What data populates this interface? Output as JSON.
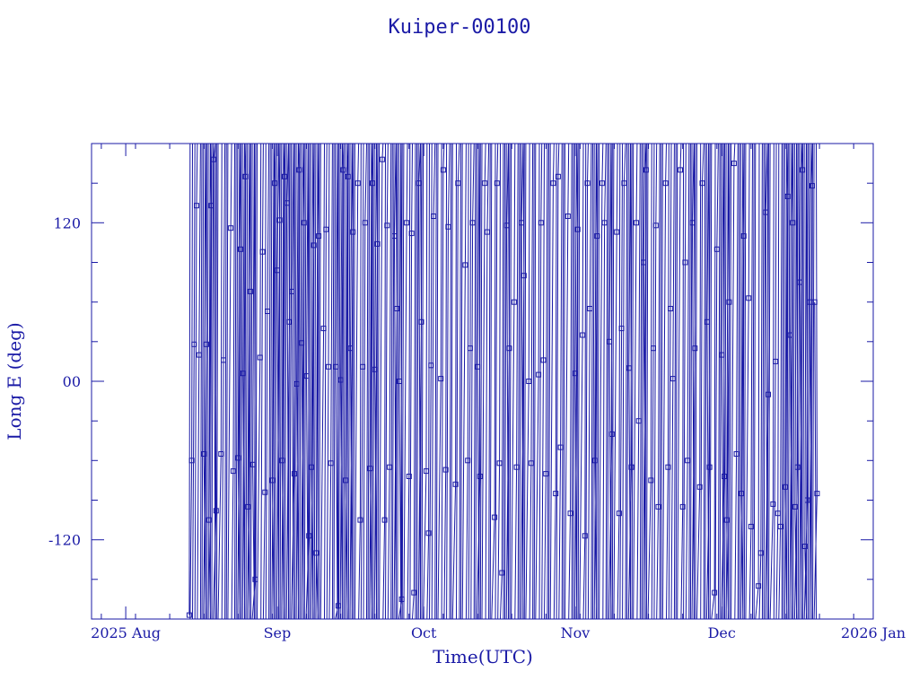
{
  "chart_data": {
    "type": "line",
    "title": "Kuiper-00100",
    "xlabel": "Time(UTC)",
    "ylabel": "Long E (deg)",
    "x_axis_kind": "date",
    "xlim": [
      "2025-07-25",
      "2026-01-01"
    ],
    "ylim": [
      -180,
      180
    ],
    "x_ticks": [
      {
        "date": "2025-08-01",
        "label": "2025 Aug"
      },
      {
        "date": "2025-09-01",
        "label": "Sep"
      },
      {
        "date": "2025-10-01",
        "label": "Oct"
      },
      {
        "date": "2025-11-01",
        "label": "Nov"
      },
      {
        "date": "2025-12-01",
        "label": "Dec"
      },
      {
        "date": "2026-01-01",
        "label": "2026 Jan"
      }
    ],
    "y_ticks": [
      {
        "value": 120,
        "label": "120"
      },
      {
        "value": 0,
        "label": "00"
      },
      {
        "value": -120,
        "label": "-120"
      }
    ],
    "grid": false,
    "legend": "none",
    "marker": "open-square",
    "color": "#1a1aa6",
    "series": [
      {
        "points": [
          {
            "x": "2025-08-14",
            "y": -177
          },
          {
            "x": "2025-08-14",
            "y": -60
          },
          {
            "x": "2025-08-15",
            "y": 28
          },
          {
            "x": "2025-08-15",
            "y": 133
          },
          {
            "x": "2025-08-16",
            "y": 20
          },
          {
            "x": "2025-08-17",
            "y": 28
          },
          {
            "x": "2025-08-17",
            "y": -55
          },
          {
            "x": "2025-08-18",
            "y": 133
          },
          {
            "x": "2025-08-18",
            "y": -105
          },
          {
            "x": "2025-08-19",
            "y": -98
          },
          {
            "x": "2025-08-19",
            "y": 168
          },
          {
            "x": "2025-08-20",
            "y": -55
          },
          {
            "x": "2025-08-21",
            "y": 16
          },
          {
            "x": "2025-08-22",
            "y": 116
          },
          {
            "x": "2025-08-23",
            "y": -68
          },
          {
            "x": "2025-08-24",
            "y": 100
          },
          {
            "x": "2025-08-24",
            "y": -58
          },
          {
            "x": "2025-08-25",
            "y": 155
          },
          {
            "x": "2025-08-25",
            "y": 6
          },
          {
            "x": "2025-08-26",
            "y": 68
          },
          {
            "x": "2025-08-26",
            "y": -95
          },
          {
            "x": "2025-08-27",
            "y": -150
          },
          {
            "x": "2025-08-27",
            "y": -63
          },
          {
            "x": "2025-08-28",
            "y": 18
          },
          {
            "x": "2025-08-29",
            "y": 98
          },
          {
            "x": "2025-08-29",
            "y": -84
          },
          {
            "x": "2025-08-30",
            "y": 53
          },
          {
            "x": "2025-08-31",
            "y": 150
          },
          {
            "x": "2025-08-31",
            "y": -75
          },
          {
            "x": "2025-09-01",
            "y": 122
          },
          {
            "x": "2025-09-01",
            "y": 84
          },
          {
            "x": "2025-09-02",
            "y": 155
          },
          {
            "x": "2025-09-02",
            "y": -60
          },
          {
            "x": "2025-09-03",
            "y": 45
          },
          {
            "x": "2025-09-03",
            "y": 135
          },
          {
            "x": "2025-09-04",
            "y": -70
          },
          {
            "x": "2025-09-04",
            "y": 68
          },
          {
            "x": "2025-09-05",
            "y": 160
          },
          {
            "x": "2025-09-05",
            "y": -2
          },
          {
            "x": "2025-09-06",
            "y": 120
          },
          {
            "x": "2025-09-06",
            "y": 29
          },
          {
            "x": "2025-09-07",
            "y": -117
          },
          {
            "x": "2025-09-07",
            "y": 4
          },
          {
            "x": "2025-09-08",
            "y": 103
          },
          {
            "x": "2025-09-08",
            "y": -65
          },
          {
            "x": "2025-09-09",
            "y": 110
          },
          {
            "x": "2025-09-09",
            "y": -130
          },
          {
            "x": "2025-09-10",
            "y": 40
          },
          {
            "x": "2025-09-11",
            "y": 115
          },
          {
            "x": "2025-09-11",
            "y": 11
          },
          {
            "x": "2025-09-12",
            "y": -62
          },
          {
            "x": "2025-09-13",
            "y": -170
          },
          {
            "x": "2025-09-13",
            "y": 11
          },
          {
            "x": "2025-09-14",
            "y": 160
          },
          {
            "x": "2025-09-14",
            "y": 1
          },
          {
            "x": "2025-09-15",
            "y": 155
          },
          {
            "x": "2025-09-15",
            "y": -75
          },
          {
            "x": "2025-09-16",
            "y": 113
          },
          {
            "x": "2025-09-16",
            "y": 25
          },
          {
            "x": "2025-09-17",
            "y": 150
          },
          {
            "x": "2025-09-18",
            "y": -105
          },
          {
            "x": "2025-09-18",
            "y": 11
          },
          {
            "x": "2025-09-19",
            "y": 120
          },
          {
            "x": "2025-09-20",
            "y": 150
          },
          {
            "x": "2025-09-20",
            "y": -66
          },
          {
            "x": "2025-09-21",
            "y": 104
          },
          {
            "x": "2025-09-21",
            "y": 9
          },
          {
            "x": "2025-09-22",
            "y": 168
          },
          {
            "x": "2025-09-23",
            "y": -105
          },
          {
            "x": "2025-09-23",
            "y": 118
          },
          {
            "x": "2025-09-24",
            "y": -65
          },
          {
            "x": "2025-09-25",
            "y": 55
          },
          {
            "x": "2025-09-25",
            "y": 110
          },
          {
            "x": "2025-09-26",
            "y": -165
          },
          {
            "x": "2025-09-26",
            "y": 0
          },
          {
            "x": "2025-09-27",
            "y": 120
          },
          {
            "x": "2025-09-28",
            "y": -72
          },
          {
            "x": "2025-09-28",
            "y": 112
          },
          {
            "x": "2025-09-29",
            "y": -160
          },
          {
            "x": "2025-09-30",
            "y": 45
          },
          {
            "x": "2025-09-30",
            "y": 150
          },
          {
            "x": "2025-10-01",
            "y": -68
          },
          {
            "x": "2025-10-02",
            "y": -115
          },
          {
            "x": "2025-10-02",
            "y": 12
          },
          {
            "x": "2025-10-03",
            "y": 125
          },
          {
            "x": "2025-10-04",
            "y": 2
          },
          {
            "x": "2025-10-05",
            "y": 160
          },
          {
            "x": "2025-10-05",
            "y": -67
          },
          {
            "x": "2025-10-06",
            "y": 117
          },
          {
            "x": "2025-10-07",
            "y": -78
          },
          {
            "x": "2025-10-08",
            "y": 150
          },
          {
            "x": "2025-10-09",
            "y": 88
          },
          {
            "x": "2025-10-10",
            "y": -60
          },
          {
            "x": "2025-10-10",
            "y": 25
          },
          {
            "x": "2025-10-11",
            "y": 120
          },
          {
            "x": "2025-10-12",
            "y": -72
          },
          {
            "x": "2025-10-12",
            "y": 11
          },
          {
            "x": "2025-10-13",
            "y": 150
          },
          {
            "x": "2025-10-14",
            "y": 113
          },
          {
            "x": "2025-10-15",
            "y": -103
          },
          {
            "x": "2025-10-16",
            "y": 150
          },
          {
            "x": "2025-10-16",
            "y": -62
          },
          {
            "x": "2025-10-17",
            "y": -145
          },
          {
            "x": "2025-10-18",
            "y": 25
          },
          {
            "x": "2025-10-18",
            "y": 118
          },
          {
            "x": "2025-10-19",
            "y": 60
          },
          {
            "x": "2025-10-20",
            "y": -65
          },
          {
            "x": "2025-10-21",
            "y": 80
          },
          {
            "x": "2025-10-21",
            "y": 120
          },
          {
            "x": "2025-10-22",
            "y": 0
          },
          {
            "x": "2025-10-23",
            "y": -62
          },
          {
            "x": "2025-10-24",
            "y": 5
          },
          {
            "x": "2025-10-25",
            "y": 120
          },
          {
            "x": "2025-10-25",
            "y": 16
          },
          {
            "x": "2025-10-26",
            "y": -70
          },
          {
            "x": "2025-10-27",
            "y": 150
          },
          {
            "x": "2025-10-28",
            "y": -85
          },
          {
            "x": "2025-10-28",
            "y": 155
          },
          {
            "x": "2025-10-29",
            "y": -50
          },
          {
            "x": "2025-10-30",
            "y": 125
          },
          {
            "x": "2025-10-31",
            "y": -100
          },
          {
            "x": "2025-11-01",
            "y": 115
          },
          {
            "x": "2025-11-01",
            "y": 6
          },
          {
            "x": "2025-11-02",
            "y": 35
          },
          {
            "x": "2025-11-03",
            "y": -117
          },
          {
            "x": "2025-11-03",
            "y": 150
          },
          {
            "x": "2025-11-04",
            "y": 55
          },
          {
            "x": "2025-11-05",
            "y": 110
          },
          {
            "x": "2025-11-05",
            "y": -60
          },
          {
            "x": "2025-11-06",
            "y": 150
          },
          {
            "x": "2025-11-07",
            "y": 120
          },
          {
            "x": "2025-11-08",
            "y": -40
          },
          {
            "x": "2025-11-08",
            "y": 30
          },
          {
            "x": "2025-11-09",
            "y": 113
          },
          {
            "x": "2025-11-10",
            "y": -100
          },
          {
            "x": "2025-11-10",
            "y": 40
          },
          {
            "x": "2025-11-11",
            "y": 150
          },
          {
            "x": "2025-11-12",
            "y": -65
          },
          {
            "x": "2025-11-12",
            "y": 10
          },
          {
            "x": "2025-11-13",
            "y": 120
          },
          {
            "x": "2025-11-14",
            "y": -30
          },
          {
            "x": "2025-11-15",
            "y": 160
          },
          {
            "x": "2025-11-15",
            "y": 90
          },
          {
            "x": "2025-11-16",
            "y": -75
          },
          {
            "x": "2025-11-17",
            "y": 25
          },
          {
            "x": "2025-11-17",
            "y": 118
          },
          {
            "x": "2025-11-18",
            "y": -95
          },
          {
            "x": "2025-11-19",
            "y": 150
          },
          {
            "x": "2025-11-20",
            "y": -65
          },
          {
            "x": "2025-11-20",
            "y": 55
          },
          {
            "x": "2025-11-21",
            "y": 2
          },
          {
            "x": "2025-11-22",
            "y": 160
          },
          {
            "x": "2025-11-23",
            "y": -95
          },
          {
            "x": "2025-11-23",
            "y": 90
          },
          {
            "x": "2025-11-24",
            "y": -60
          },
          {
            "x": "2025-11-25",
            "y": 25
          },
          {
            "x": "2025-11-25",
            "y": 120
          },
          {
            "x": "2025-11-26",
            "y": -80
          },
          {
            "x": "2025-11-27",
            "y": 150
          },
          {
            "x": "2025-11-28",
            "y": -65
          },
          {
            "x": "2025-11-28",
            "y": 45
          },
          {
            "x": "2025-11-29",
            "y": -160
          },
          {
            "x": "2025-11-30",
            "y": 100
          },
          {
            "x": "2025-12-01",
            "y": -72
          },
          {
            "x": "2025-12-01",
            "y": 20
          },
          {
            "x": "2025-12-02",
            "y": 60
          },
          {
            "x": "2025-12-02",
            "y": -105
          },
          {
            "x": "2025-12-03",
            "y": 165
          },
          {
            "x": "2025-12-04",
            "y": -55
          },
          {
            "x": "2025-12-05",
            "y": 110
          },
          {
            "x": "2025-12-05",
            "y": -85
          },
          {
            "x": "2025-12-06",
            "y": 63
          },
          {
            "x": "2025-12-07",
            "y": -110
          },
          {
            "x": "2025-12-08",
            "y": -155
          },
          {
            "x": "2025-12-09",
            "y": -130
          },
          {
            "x": "2025-12-10",
            "y": -10
          },
          {
            "x": "2025-12-10",
            "y": 128
          },
          {
            "x": "2025-12-11",
            "y": -93
          },
          {
            "x": "2025-12-12",
            "y": 15
          },
          {
            "x": "2025-12-12",
            "y": -100
          },
          {
            "x": "2025-12-13",
            "y": -110
          },
          {
            "x": "2025-12-14",
            "y": 140
          },
          {
            "x": "2025-12-14",
            "y": -80
          },
          {
            "x": "2025-12-15",
            "y": 120
          },
          {
            "x": "2025-12-15",
            "y": 35
          },
          {
            "x": "2025-12-16",
            "y": -65
          },
          {
            "x": "2025-12-16",
            "y": -95
          },
          {
            "x": "2025-12-17",
            "y": 160
          },
          {
            "x": "2025-12-17",
            "y": 75
          },
          {
            "x": "2025-12-18",
            "y": -90
          },
          {
            "x": "2025-12-18",
            "y": -125
          },
          {
            "x": "2025-12-19",
            "y": 148
          },
          {
            "x": "2025-12-19",
            "y": 60
          },
          {
            "x": "2025-12-20",
            "y": -85
          },
          {
            "x": "2025-12-20",
            "y": 60
          }
        ]
      }
    ]
  }
}
